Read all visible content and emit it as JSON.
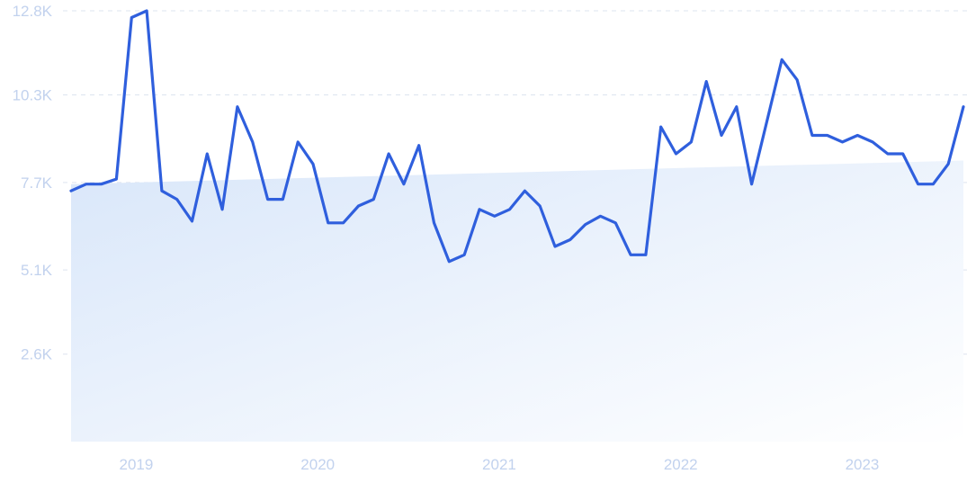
{
  "chart_data": {
    "type": "line",
    "title": "",
    "xlabel": "",
    "ylabel": "",
    "grid": true,
    "y_ticks": [
      "12.8K",
      "10.3K",
      "7.7K",
      "5.1K",
      "2.6K"
    ],
    "y_tick_values": [
      12800,
      10300,
      7700,
      5100,
      2600
    ],
    "ylim": [
      0,
      12800
    ],
    "x_ticks": [
      "2019",
      "2020",
      "2021",
      "2022",
      "2023"
    ],
    "x_tick_dates": [
      "2019-01",
      "2020-01",
      "2021-01",
      "2022-01",
      "2023-01"
    ],
    "trend": {
      "start": {
        "date": "2018-10",
        "value": 7650
      },
      "end": {
        "date": "2023-09",
        "value": 8350
      }
    },
    "series": [
      {
        "color": "#2f5fdd",
        "x": [
          "2018-10",
          "2018-11",
          "2018-12",
          "2019-01",
          "2019-02",
          "2019-03",
          "2019-04",
          "2019-05",
          "2019-06",
          "2019-07",
          "2019-08",
          "2019-09",
          "2019-10",
          "2019-11",
          "2019-12",
          "2020-01",
          "2020-02",
          "2020-03",
          "2020-04",
          "2020-05",
          "2020-06",
          "2020-07",
          "2020-08",
          "2020-09",
          "2020-10",
          "2020-11",
          "2020-12",
          "2021-01",
          "2021-02",
          "2021-03",
          "2021-04",
          "2021-05",
          "2021-06",
          "2021-07",
          "2021-08",
          "2021-09",
          "2021-10",
          "2021-11",
          "2021-12",
          "2022-01",
          "2022-02",
          "2022-03",
          "2022-04",
          "2022-05",
          "2022-06",
          "2022-07",
          "2022-08",
          "2022-09",
          "2022-10",
          "2022-11",
          "2022-12",
          "2023-01",
          "2023-02",
          "2023-03",
          "2023-04",
          "2023-05",
          "2023-06",
          "2023-07",
          "2023-08",
          "2023-09"
        ],
        "values": [
          7450,
          7650,
          7650,
          7800,
          12600,
          12800,
          7450,
          7200,
          6550,
          8550,
          6900,
          9950,
          8900,
          7200,
          7200,
          8900,
          8250,
          6500,
          6500,
          7000,
          7200,
          8550,
          7650,
          8800,
          6500,
          5350,
          5550,
          6900,
          6700,
          6900,
          7450,
          7000,
          5800,
          6000,
          6450,
          6700,
          6500,
          5550,
          5550,
          9350,
          8550,
          8900,
          10700,
          9100,
          9950,
          7650,
          9500,
          11350,
          10750,
          9100,
          9100,
          8900,
          9100,
          8900,
          8550,
          8550,
          7650,
          7650,
          8250,
          9950
        ]
      }
    ]
  }
}
